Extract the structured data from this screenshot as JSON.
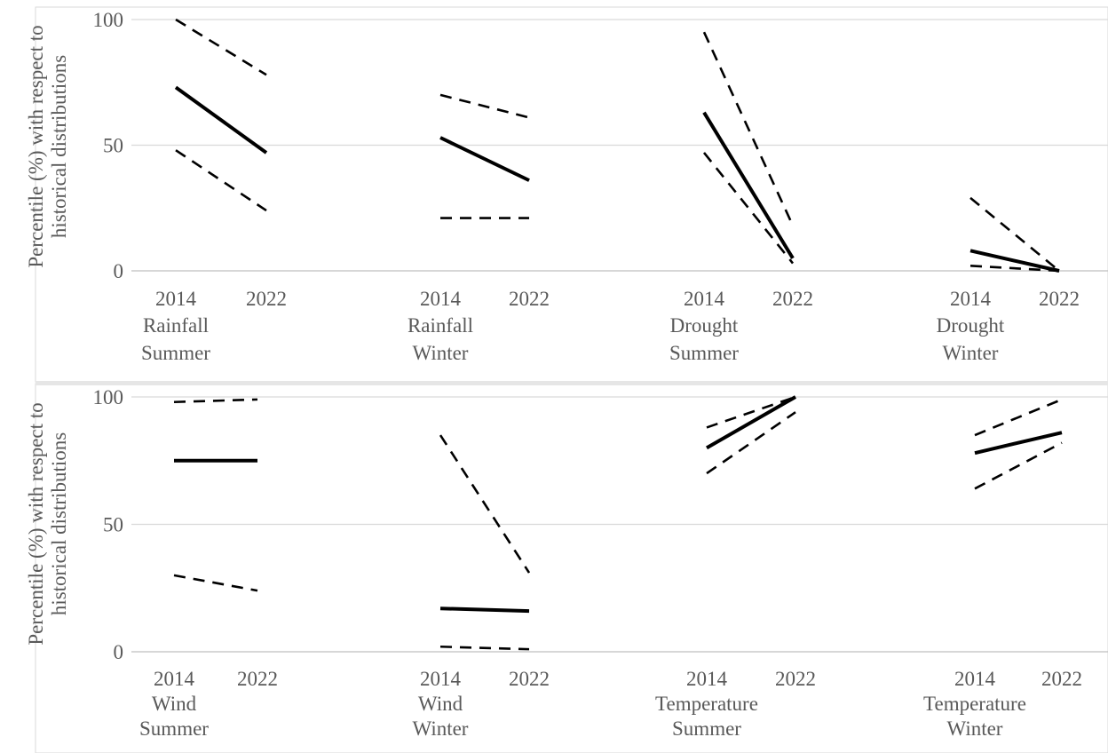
{
  "chart_data": [
    {
      "type": "line",
      "ylabel": [
        "Percentile (%) with respect to",
        "historical distributions"
      ],
      "ylim": [
        0,
        100
      ],
      "yticks": [
        0,
        50,
        100
      ],
      "grid": true,
      "groups": [
        {
          "x": [
            "2014",
            "2022"
          ],
          "label": [
            "Rainfall",
            "Summer"
          ],
          "series": [
            {
              "style": "dashed",
              "values": [
                100,
                78
              ]
            },
            {
              "style": "solid",
              "values": [
                73,
                47
              ]
            },
            {
              "style": "dashed",
              "values": [
                48,
                24
              ]
            }
          ]
        },
        {
          "x": [
            "2014",
            "2022"
          ],
          "label": [
            "Rainfall",
            "Winter"
          ],
          "series": [
            {
              "style": "dashed",
              "values": [
                70,
                61
              ]
            },
            {
              "style": "solid",
              "values": [
                53,
                36
              ]
            },
            {
              "style": "dashed",
              "values": [
                21,
                21
              ]
            }
          ]
        },
        {
          "x": [
            "2014",
            "2022"
          ],
          "label": [
            "Drought",
            "Summer"
          ],
          "series": [
            {
              "style": "dashed",
              "values": [
                95,
                18
              ]
            },
            {
              "style": "solid",
              "values": [
                63,
                5
              ]
            },
            {
              "style": "dashed",
              "values": [
                47,
                3
              ]
            }
          ]
        },
        {
          "x": [
            "2014",
            "2022"
          ],
          "label": [
            "Drought",
            "Winter"
          ],
          "series": [
            {
              "style": "dashed",
              "values": [
                29,
                0
              ]
            },
            {
              "style": "solid",
              "values": [
                8,
                0
              ]
            },
            {
              "style": "dashed",
              "values": [
                2,
                0
              ]
            }
          ]
        }
      ]
    },
    {
      "type": "line",
      "ylabel": [
        "Percentile (%) with respect to",
        "historical distributions"
      ],
      "ylim": [
        0,
        100
      ],
      "yticks": [
        0,
        50,
        100
      ],
      "grid": true,
      "groups": [
        {
          "x": [
            "2014",
            "2022"
          ],
          "label": [
            "Wind",
            "Summer"
          ],
          "series": [
            {
              "style": "dashed",
              "values": [
                98,
                99
              ]
            },
            {
              "style": "solid",
              "values": [
                75,
                75
              ]
            },
            {
              "style": "dashed",
              "values": [
                30,
                24
              ]
            }
          ]
        },
        {
          "x": [
            "2014",
            "2022"
          ],
          "label": [
            "Wind",
            "Winter"
          ],
          "series": [
            {
              "style": "dashed",
              "values": [
                85,
                31
              ]
            },
            {
              "style": "solid",
              "values": [
                17,
                16
              ]
            },
            {
              "style": "dashed",
              "values": [
                2,
                1
              ]
            }
          ]
        },
        {
          "x": [
            "2014",
            "2022"
          ],
          "label": [
            "Temperature",
            "Summer"
          ],
          "series": [
            {
              "style": "dashed",
              "values": [
                88,
                100
              ]
            },
            {
              "style": "solid",
              "values": [
                80,
                100
              ]
            },
            {
              "style": "dashed",
              "values": [
                70,
                94
              ]
            }
          ]
        },
        {
          "x": [
            "2014",
            "2022"
          ],
          "label": [
            "Temperature",
            "Winter"
          ],
          "series": [
            {
              "style": "dashed",
              "values": [
                85,
                99
              ]
            },
            {
              "style": "solid",
              "values": [
                78,
                86
              ]
            },
            {
              "style": "dashed",
              "values": [
                64,
                82
              ]
            }
          ]
        }
      ]
    }
  ]
}
